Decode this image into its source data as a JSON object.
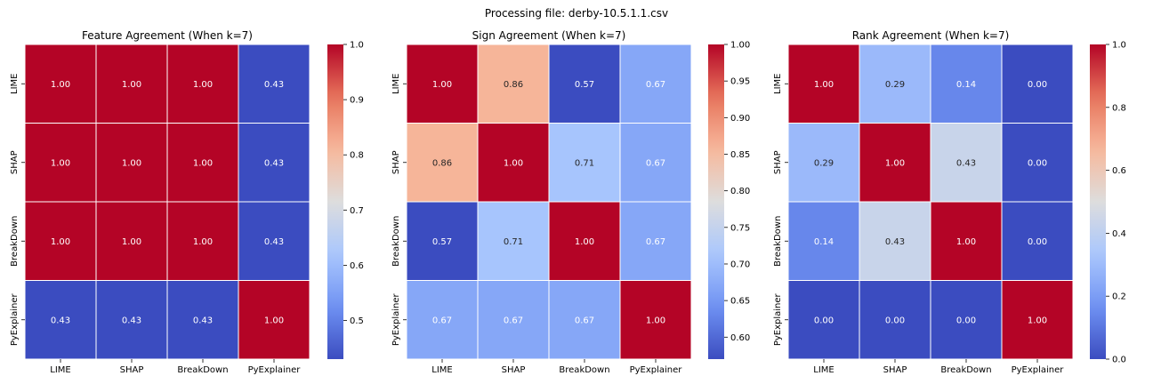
{
  "suptitle": "Processing file: derby-10.5.1.1.csv",
  "colormap": "coolwarm",
  "colormap_stops": [
    "#3b4cc0",
    "#6f92f3",
    "#aac7fd",
    "#dddddd",
    "#f7b89c",
    "#e7745b",
    "#b40426"
  ],
  "cell_line_color": "#ffffff",
  "chart_data": [
    {
      "type": "heatmap",
      "title": "Feature Agreement (When k=7)",
      "rows": [
        "LIME",
        "SHAP",
        "BreakDown",
        "PyExplainer"
      ],
      "columns": [
        "LIME",
        "SHAP",
        "BreakDown",
        "PyExplainer"
      ],
      "values": [
        [
          1.0,
          1.0,
          1.0,
          0.43
        ],
        [
          1.0,
          1.0,
          1.0,
          0.43
        ],
        [
          1.0,
          1.0,
          1.0,
          0.43
        ],
        [
          0.43,
          0.43,
          0.43,
          1.0
        ]
      ],
      "vmin": 0.43,
      "vmax": 1.0,
      "colorbar_ticks": [
        "0.5",
        "0.6",
        "0.7",
        "0.8",
        "0.9",
        "1.0"
      ]
    },
    {
      "type": "heatmap",
      "title": "Sign Agreement (When k=7)",
      "rows": [
        "LIME",
        "SHAP",
        "BreakDown",
        "PyExplainer"
      ],
      "columns": [
        "LIME",
        "SHAP",
        "BreakDown",
        "PyExplainer"
      ],
      "values": [
        [
          1.0,
          0.86,
          0.57,
          0.67
        ],
        [
          0.86,
          1.0,
          0.71,
          0.67
        ],
        [
          0.57,
          0.71,
          1.0,
          0.67
        ],
        [
          0.67,
          0.67,
          0.67,
          1.0
        ]
      ],
      "vmin": 0.57,
      "vmax": 1.0,
      "colorbar_ticks": [
        "0.60",
        "0.65",
        "0.70",
        "0.75",
        "0.80",
        "0.85",
        "0.90",
        "0.95",
        "1.00"
      ]
    },
    {
      "type": "heatmap",
      "title": "Rank Agreement (When k=7)",
      "rows": [
        "LIME",
        "SHAP",
        "BreakDown",
        "PyExplainer"
      ],
      "columns": [
        "LIME",
        "SHAP",
        "BreakDown",
        "PyExplainer"
      ],
      "values": [
        [
          1.0,
          0.29,
          0.14,
          0.0
        ],
        [
          0.29,
          1.0,
          0.43,
          0.0
        ],
        [
          0.14,
          0.43,
          1.0,
          0.0
        ],
        [
          0.0,
          0.0,
          0.0,
          1.0
        ]
      ],
      "vmin": 0.0,
      "vmax": 1.0,
      "colorbar_ticks": [
        "0.0",
        "0.2",
        "0.4",
        "0.6",
        "0.8",
        "1.0"
      ]
    }
  ]
}
